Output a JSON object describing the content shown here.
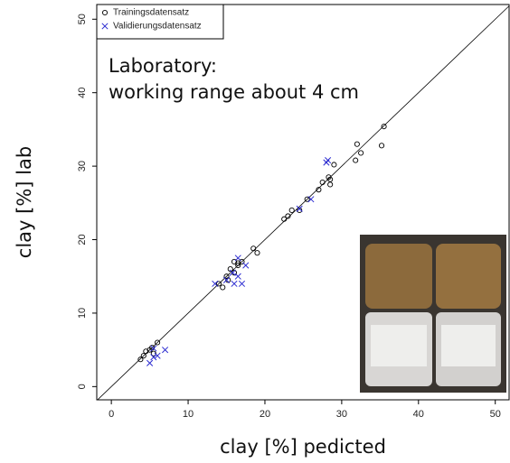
{
  "chart_data": {
    "type": "scatter",
    "xlabel": "clay [%] pedicted",
    "ylabel": "clay [%] lab",
    "annotation": [
      "Laboratory:",
      "working range about 4 cm"
    ],
    "xlim": [
      -1.9,
      51.8
    ],
    "ylim": [
      -1.8,
      52
    ],
    "xticks": [
      0,
      10,
      20,
      30,
      40,
      50
    ],
    "yticks": [
      0,
      10,
      20,
      30,
      40,
      50
    ],
    "legend": "top-left",
    "series": [
      {
        "name": "Trainingsdatensatz",
        "marker": "circle",
        "color": "#000000",
        "x": [
          3.8,
          4.2,
          4.5,
          5,
          5.3,
          6,
          5.5,
          14,
          14.5,
          15,
          15.5,
          16,
          16.5,
          17,
          16,
          18.5,
          19,
          22.5,
          23,
          23.5,
          24.5,
          25.5,
          27,
          27.5,
          28.3,
          28.5,
          28.5,
          29,
          32,
          32.5,
          31.8,
          35.5,
          35.2,
          16.5,
          15.2
        ],
        "values": [
          3.7,
          4.2,
          4.8,
          5,
          5.3,
          6,
          4.5,
          14,
          13.5,
          15,
          16,
          17,
          16.5,
          17,
          15.5,
          18.8,
          18.2,
          22.8,
          23.2,
          24,
          24,
          25.5,
          26.8,
          27.8,
          28.5,
          27.5,
          28.2,
          30.2,
          33,
          31.8,
          30.8,
          35.4,
          32.8,
          16.8,
          14.5
        ]
      },
      {
        "name": "Validierungsdatensatz",
        "marker": "cross",
        "color": "#2a2ad0",
        "x": [
          5,
          5.5,
          6,
          7,
          5.5,
          13.5,
          15,
          16,
          16.5,
          17,
          17.5,
          16.5,
          24.5,
          26,
          28,
          28.2,
          15.8
        ],
        "values": [
          3.2,
          4,
          4.2,
          5,
          5.2,
          14,
          14.5,
          14,
          15,
          14,
          16.5,
          17.5,
          24.2,
          25.5,
          30.5,
          30.8,
          15.5
        ]
      }
    ]
  }
}
